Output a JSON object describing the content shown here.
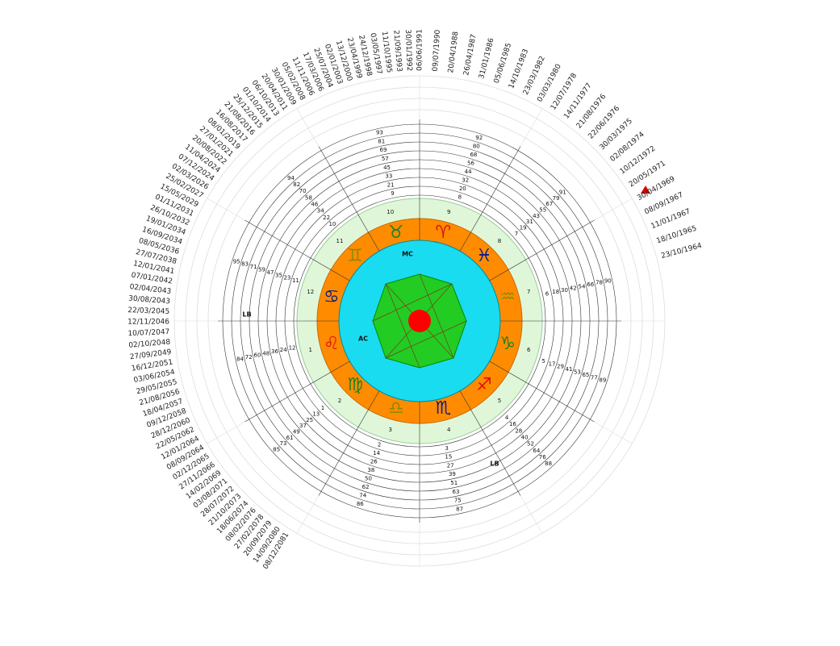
{
  "dates": [
    "23/10/1964",
    "18/10/1965",
    "11/01/1967",
    "08/09/1967",
    "30/04/1969",
    "20/05/1971",
    "10/12/1972",
    "02/08/1974",
    "30/03/1975",
    "22/06/1976",
    "21/08/1976",
    "14/11/1977",
    "12/07/1978",
    "03/03/1980",
    "23/03/1982",
    "14/10/1983",
    "05/06/1985",
    "31/01/1986",
    "26/04/1987",
    "20/04/1988",
    "09/07/1990",
    "06/06/1991",
    "30/01/1992",
    "21/09/1993",
    "11/10/1995",
    "03/05/1997",
    "24/12/1998",
    "23/04/1999",
    "13/12/2000",
    "02/01/2003",
    "25/07/2004",
    "17/03/2006",
    "11/11/2006",
    "05/02/2008",
    "30/01/2009",
    "20/04/2011",
    "06/10/2013",
    "01/10/2014",
    "25/12/2015",
    "21/08/2016",
    "16/08/2017",
    "08/01/2019",
    "27/01/2021",
    "20/08/2022",
    "11/04/2024",
    "07/12/2024",
    "02/03/2026",
    "25/02/2027",
    "15/05/2029",
    "01/11/2031",
    "26/10/2032",
    "19/01/2034",
    "16/09/2034",
    "08/05/2036",
    "27/07/2038",
    "12/01/2041",
    "07/01/2042",
    "02/04/2043",
    "30/08/2043",
    "22/03/2045",
    "12/11/2046",
    "10/07/2047",
    "02/10/2048",
    "27/09/2049",
    "16/12/2051",
    "03/06/2054",
    "29/05/2055",
    "21/08/2056",
    "18/04/2057",
    "09/12/2058",
    "28/12/2060",
    "22/05/2062",
    "12/01/2064",
    "08/09/2064",
    "02/12/2065",
    "27/11/2066",
    "14/02/2069",
    "03/08/2071",
    "28/07/2072",
    "21/10/2073",
    "18/06/2074",
    "08/02/2076",
    "27/02/2078",
    "20/09/2079",
    "14/09/2080",
    "08/12/2081"
  ],
  "houses": [
    1,
    2,
    3,
    4,
    5,
    6,
    7,
    8,
    9,
    10,
    11,
    12
  ],
  "ages": [
    [
      1,
      13,
      25,
      37,
      49,
      61,
      73,
      85
    ],
    [
      2,
      14,
      26,
      38,
      50,
      62,
      74,
      86
    ],
    [
      3,
      15,
      27,
      39,
      51,
      63,
      75,
      87
    ],
    [
      4,
      16,
      28,
      40,
      52,
      64,
      76,
      88
    ],
    [
      5,
      17,
      29,
      41,
      53,
      65,
      77,
      89
    ],
    [
      6,
      18,
      30,
      42,
      54,
      66,
      78,
      90
    ],
    [
      7,
      19,
      31,
      43,
      55,
      67,
      79,
      91
    ],
    [
      8,
      20,
      32,
      44,
      56,
      68,
      80,
      92
    ],
    [
      9,
      21,
      33,
      45,
      57,
      69,
      81,
      93
    ],
    [
      10,
      22,
      34,
      46,
      58,
      70,
      82,
      94
    ],
    [
      11,
      23,
      35,
      47,
      59,
      71,
      83,
      95
    ],
    [
      12,
      24,
      36,
      48,
      60,
      72,
      84
    ]
  ],
  "zodiac": [
    "♈",
    "♉",
    "♊",
    "♋",
    "♌",
    "♍",
    "♎",
    "♏",
    "♐",
    "♑",
    "♒",
    "♓"
  ],
  "labels": [
    "MC",
    "AC",
    "LB",
    "LB"
  ]
}
